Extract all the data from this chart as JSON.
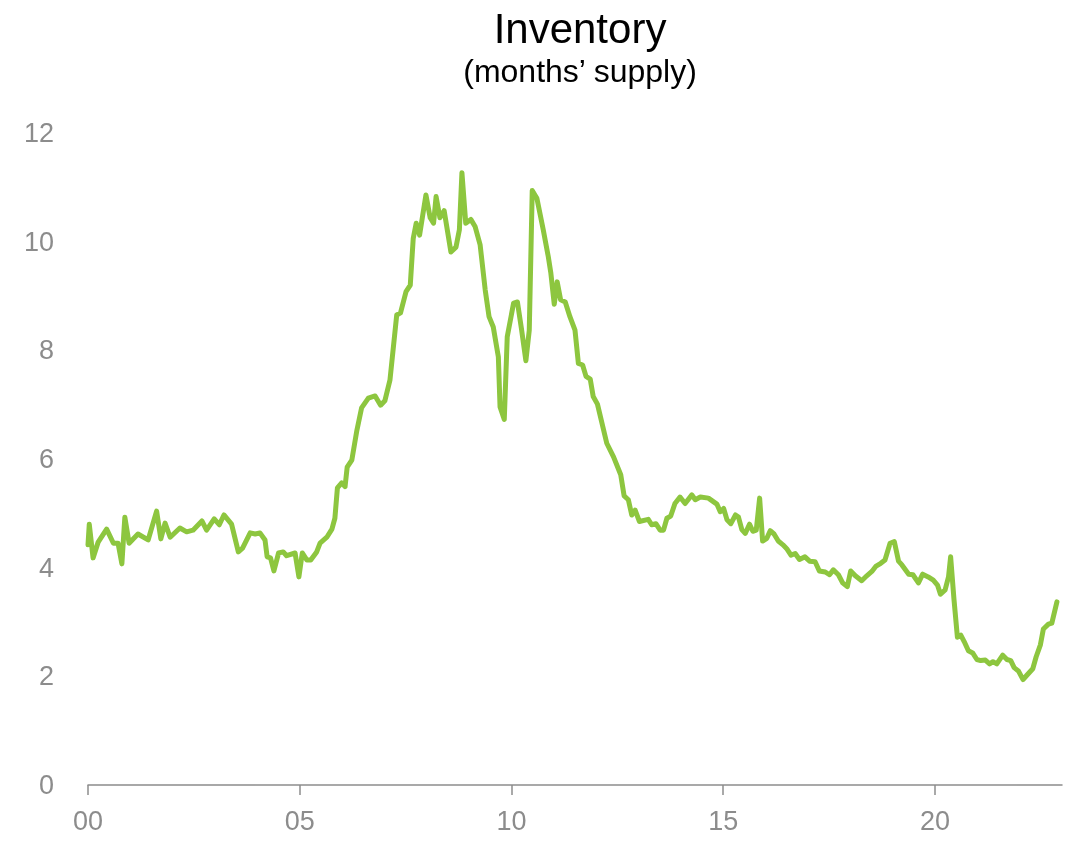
{
  "chart_data": {
    "type": "line",
    "title": "Inventory",
    "subtitle": "(months’ supply)",
    "xlim": [
      2000,
      2023
    ],
    "xticks": [
      {
        "value": 2000,
        "label": "00"
      },
      {
        "value": 2005,
        "label": "05"
      },
      {
        "value": 2010,
        "label": "10"
      },
      {
        "value": 2015,
        "label": "15"
      },
      {
        "value": 2020,
        "label": "20"
      }
    ],
    "ylim": [
      0,
      12
    ],
    "yticks": [
      0,
      2,
      4,
      6,
      8,
      10,
      12
    ],
    "grid": false,
    "marker": "none",
    "line_style": "solid",
    "series": [
      {
        "color": "#8dc63f",
        "x": [
          2000.0,
          2000.03,
          2000.12,
          2000.24,
          2000.44,
          2000.6,
          2000.71,
          2000.8,
          2000.87,
          2000.97,
          2001.18,
          2001.42,
          2001.62,
          2001.72,
          2001.82,
          2001.94,
          2002.17,
          2002.33,
          2002.48,
          2002.69,
          2002.8,
          2002.98,
          2003.1,
          2003.21,
          2003.39,
          2003.55,
          2003.65,
          2003.83,
          2003.95,
          2004.06,
          2004.18,
          2004.23,
          2004.31,
          2004.39,
          2004.5,
          2004.61,
          2004.69,
          2004.89,
          2004.98,
          2005.06,
          2005.17,
          2005.26,
          2005.4,
          2005.48,
          2005.64,
          2005.76,
          2005.83,
          2005.89,
          2005.99,
          2006.07,
          2006.12,
          2006.23,
          2006.35,
          2006.46,
          2006.62,
          2006.78,
          2006.91,
          2007.01,
          2007.13,
          2007.29,
          2007.38,
          2007.51,
          2007.61,
          2007.68,
          2007.75,
          2007.83,
          2007.98,
          2008.08,
          2008.16,
          2008.22,
          2008.31,
          2008.41,
          2008.57,
          2008.69,
          2008.77,
          2008.83,
          2008.92,
          2009.04,
          2009.14,
          2009.26,
          2009.38,
          2009.47,
          2009.57,
          2009.69,
          2009.73,
          2009.83,
          2009.9,
          2010.05,
          2010.14,
          2010.24,
          2010.34,
          2010.42,
          2010.49,
          2010.6,
          2010.75,
          2010.87,
          2010.93,
          2011.01,
          2011.08,
          2011.16,
          2011.27,
          2011.38,
          2011.5,
          2011.58,
          2011.68,
          2011.76,
          2011.86,
          2011.93,
          2012.03,
          2012.25,
          2012.41,
          2012.58,
          2012.66,
          2012.76,
          2012.84,
          2012.92,
          2013.02,
          2013.23,
          2013.31,
          2013.41,
          2013.51,
          2013.59,
          2013.67,
          2013.76,
          2013.86,
          2013.98,
          2014.1,
          2014.26,
          2014.34,
          2014.46,
          2014.65,
          2014.85,
          2014.93,
          2015.01,
          2015.09,
          2015.18,
          2015.29,
          2015.36,
          2015.44,
          2015.52,
          2015.62,
          2015.7,
          2015.78,
          2015.86,
          2015.93,
          2016.03,
          2016.11,
          2016.2,
          2016.3,
          2016.41,
          2016.5,
          2016.6,
          2016.7,
          2016.8,
          2016.93,
          2017.04,
          2017.17,
          2017.27,
          2017.41,
          2017.51,
          2017.6,
          2017.72,
          2017.82,
          2017.93,
          2018.01,
          2018.12,
          2018.27,
          2018.39,
          2018.51,
          2018.61,
          2018.72,
          2018.82,
          2018.94,
          2019.04,
          2019.14,
          2019.22,
          2019.38,
          2019.48,
          2019.61,
          2019.71,
          2019.84,
          2019.96,
          2020.06,
          2020.13,
          2020.24,
          2020.32,
          2020.37,
          2020.45,
          2020.53,
          2020.61,
          2020.69,
          2020.79,
          2020.89,
          2020.99,
          2021.08,
          2021.19,
          2021.29,
          2021.37,
          2021.46,
          2021.6,
          2021.7,
          2021.79,
          2021.87,
          2021.97,
          2022.08,
          2022.17,
          2022.31,
          2022.39,
          2022.49,
          2022.56,
          2022.68,
          2022.76,
          2022.88
        ],
        "values": [
          4.42,
          4.8,
          4.18,
          4.47,
          4.71,
          4.45,
          4.45,
          4.07,
          4.93,
          4.45,
          4.62,
          4.51,
          5.04,
          4.53,
          4.82,
          4.56,
          4.73,
          4.66,
          4.69,
          4.86,
          4.69,
          4.9,
          4.79,
          4.97,
          4.8,
          4.29,
          4.36,
          4.64,
          4.62,
          4.64,
          4.51,
          4.2,
          4.18,
          3.94,
          4.27,
          4.29,
          4.22,
          4.27,
          3.83,
          4.27,
          4.14,
          4.14,
          4.29,
          4.45,
          4.56,
          4.71,
          4.91,
          5.47,
          5.56,
          5.49,
          5.85,
          5.98,
          6.53,
          6.94,
          7.12,
          7.16,
          6.99,
          7.07,
          7.45,
          8.65,
          8.69,
          9.08,
          9.2,
          10.06,
          10.34,
          10.12,
          10.86,
          10.44,
          10.34,
          10.83,
          10.44,
          10.57,
          9.81,
          9.9,
          10.22,
          11.27,
          10.34,
          10.41,
          10.28,
          9.94,
          9.11,
          8.62,
          8.43,
          7.88,
          6.96,
          6.73,
          8.25,
          8.87,
          8.89,
          8.37,
          7.81,
          8.37,
          10.94,
          10.8,
          10.22,
          9.72,
          9.42,
          8.85,
          9.26,
          8.93,
          8.89,
          8.62,
          8.37,
          7.76,
          7.73,
          7.52,
          7.47,
          7.15,
          7.01,
          6.29,
          6.04,
          5.71,
          5.32,
          5.25,
          4.97,
          5.06,
          4.85,
          4.89,
          4.79,
          4.81,
          4.69,
          4.69,
          4.91,
          4.95,
          5.18,
          5.3,
          5.18,
          5.34,
          5.25,
          5.3,
          5.28,
          5.17,
          5.03,
          5.09,
          4.88,
          4.81,
          4.97,
          4.93,
          4.7,
          4.63,
          4.8,
          4.67,
          4.69,
          5.28,
          4.49,
          4.54,
          4.68,
          4.62,
          4.49,
          4.42,
          4.35,
          4.23,
          4.26,
          4.15,
          4.2,
          4.12,
          4.11,
          3.94,
          3.92,
          3.87,
          3.96,
          3.87,
          3.72,
          3.65,
          3.94,
          3.85,
          3.76,
          3.85,
          3.93,
          4.03,
          4.08,
          4.14,
          4.45,
          4.48,
          4.12,
          4.05,
          3.88,
          3.87,
          3.72,
          3.88,
          3.83,
          3.77,
          3.68,
          3.51,
          3.59,
          3.83,
          4.2,
          3.41,
          2.72,
          2.76,
          2.64,
          2.47,
          2.43,
          2.31,
          2.29,
          2.3,
          2.23,
          2.27,
          2.23,
          2.39,
          2.31,
          2.29,
          2.16,
          2.1,
          1.94,
          2.02,
          2.14,
          2.36,
          2.58,
          2.87,
          2.96,
          2.98,
          3.37
        ]
      }
    ]
  }
}
